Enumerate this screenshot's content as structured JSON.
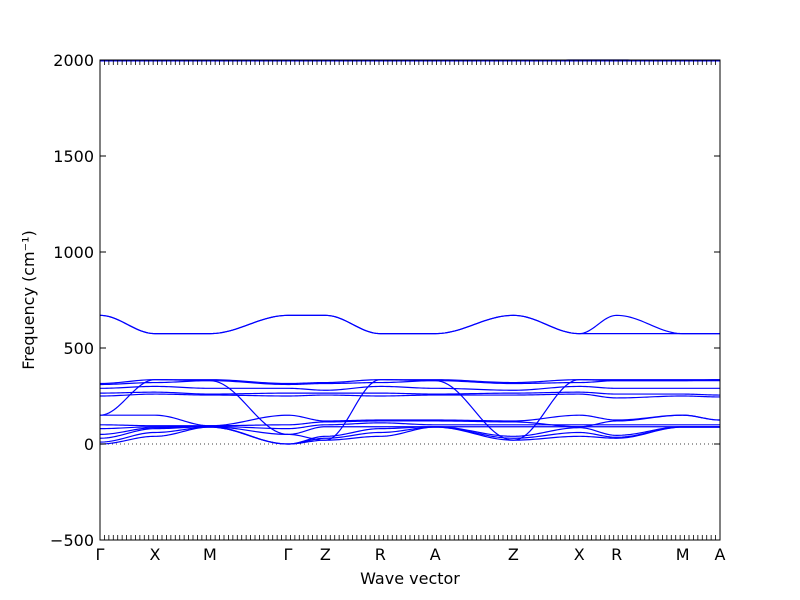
{
  "chart_data": {
    "type": "line",
    "title": "",
    "xlabel": "Wave vector",
    "ylabel": "Frequency (cm⁻¹)",
    "ylim": [
      -500,
      2000
    ],
    "yticks": [
      -500,
      0,
      500,
      1000,
      1500,
      2000
    ],
    "high_symmetry_points": [
      {
        "label": "Γ",
        "k": 0.0
      },
      {
        "label": "X",
        "k": 0.5
      },
      {
        "label": "M",
        "k": 1.0
      },
      {
        "label": "Γ",
        "k": 1.71
      },
      {
        "label": "Z",
        "k": 2.05
      },
      {
        "label": "R",
        "k": 2.55
      },
      {
        "label": "A",
        "k": 3.05
      },
      {
        "label": "Z",
        "k": 3.76
      },
      {
        "label": "X",
        "k": 4.36
      },
      {
        "label": "R",
        "k": 4.7
      },
      {
        "label": "M",
        "k": 5.3
      },
      {
        "label": "A",
        "k": 5.64
      }
    ],
    "xlim": [
      0,
      5.64
    ],
    "zero_line": true,
    "series_color": "#0000ff",
    "bands": [
      {
        "values": [
          0,
          40,
          88,
          0,
          20,
          40,
          88,
          20,
          40,
          30,
          88,
          88
        ]
      },
      {
        "values": [
          10,
          60,
          88,
          0,
          30,
          60,
          88,
          30,
          60,
          35,
          88,
          88
        ]
      },
      {
        "values": [
          30,
          80,
          90,
          0,
          40,
          80,
          90,
          40,
          85,
          45,
          90,
          90
        ]
      },
      {
        "values": [
          50,
          85,
          90,
          50,
          90,
          90,
          90,
          90,
          90,
          90,
          90,
          90
        ]
      },
      {
        "values": [
          80,
          90,
          92,
          80,
          100,
          110,
          100,
          100,
          100,
          100,
          100,
          100
        ]
      },
      {
        "values": [
          100,
          95,
          95,
          100,
          115,
          120,
          120,
          115,
          90,
          120,
          150,
          125
        ]
      },
      {
        "values": [
          150,
          150,
          95,
          150,
          120,
          125,
          125,
          120,
          150,
          125,
          150,
          125
        ]
      },
      {
        "values": [
          150,
          335,
          330,
          50,
          20,
          335,
          330,
          20,
          335,
          330,
          330,
          335
        ]
      },
      {
        "values": [
          250,
          260,
          255,
          250,
          255,
          250,
          255,
          255,
          260,
          240,
          250,
          245
        ]
      },
      {
        "values": [
          265,
          270,
          260,
          265,
          265,
          265,
          260,
          265,
          270,
          260,
          260,
          255
        ]
      },
      {
        "values": [
          290,
          300,
          290,
          290,
          280,
          300,
          290,
          280,
          300,
          290,
          290,
          290
        ]
      },
      {
        "values": [
          310,
          320,
          330,
          310,
          315,
          320,
          330,
          315,
          320,
          330,
          330,
          330
        ]
      },
      {
        "values": [
          315,
          335,
          335,
          315,
          320,
          335,
          335,
          320,
          335,
          335,
          335,
          335
        ]
      },
      {
        "values": [
          670,
          575,
          575,
          670,
          670,
          575,
          575,
          670,
          575,
          575,
          575,
          575
        ]
      },
      {
        "values": [
          670,
          575,
          575,
          670,
          670,
          575,
          575,
          670,
          575,
          670,
          575,
          575
        ]
      },
      {
        "values": [
          1995,
          1995,
          1995,
          1995,
          1995,
          1995,
          1995,
          1995,
          1995,
          1995,
          1995,
          1995
        ]
      },
      {
        "values": [
          1998,
          1998,
          1998,
          1998,
          1998,
          1998,
          1998,
          1998,
          2000,
          2000,
          1998,
          1998
        ]
      }
    ]
  }
}
